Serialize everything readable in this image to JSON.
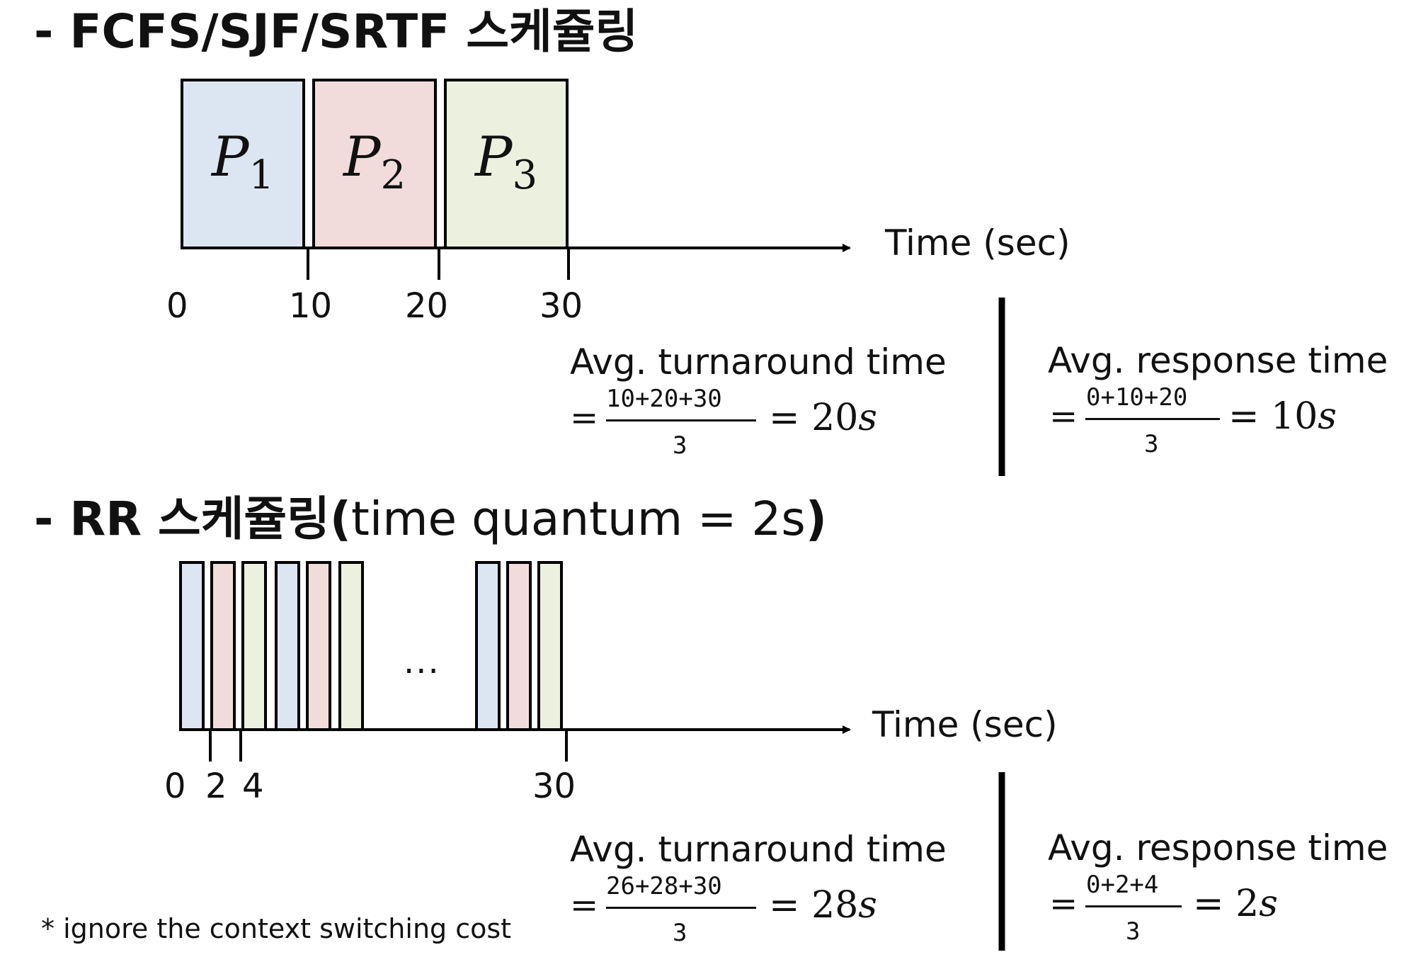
{
  "section1": {
    "heading": "- FCFS/SJF/SRTF 스케쥴링",
    "axis_label": "Time (sec)",
    "ticks": [
      "0",
      "10",
      "20",
      "30"
    ],
    "blocks": [
      {
        "base": "P",
        "sub": "1",
        "start": 0,
        "end": 10,
        "color": "#dce6f2"
      },
      {
        "base": "P",
        "sub": "2",
        "start": 10,
        "end": 20,
        "color": "#f2dcdb"
      },
      {
        "base": "P",
        "sub": "3",
        "start": 20,
        "end": 30,
        "color": "#ebf1de"
      }
    ],
    "turnaround": {
      "label": "Avg. turnaround time",
      "eq": "=",
      "numerator": "10+20+30",
      "denominator": "3",
      "result_eq": "=",
      "result_value": "20",
      "result_unit": "s"
    },
    "response": {
      "label": "Avg. response time",
      "eq": "=",
      "numerator": "0+10+20",
      "denominator": "3",
      "result_eq": "=",
      "result_value": "10",
      "result_unit": "s"
    }
  },
  "section2": {
    "heading_bold": "- RR 스케쥴링",
    "paren_open": "(",
    "heading_normal": "time quantum  =  2s",
    "paren_close": ")",
    "axis_label": "Time (sec)",
    "ticks": [
      "0",
      "2",
      "4",
      "30"
    ],
    "ellipsis": "...",
    "slices": [
      {
        "process": "P1",
        "start": 0,
        "end": 2,
        "color": "#dce6f2"
      },
      {
        "process": "P2",
        "start": 2,
        "end": 4,
        "color": "#f2dcdb"
      },
      {
        "process": "P3",
        "start": 4,
        "end": 6,
        "color": "#ebf1de"
      },
      {
        "process": "P1",
        "start": 6,
        "end": 8,
        "color": "#dce6f2"
      },
      {
        "process": "P2",
        "start": 8,
        "end": 10,
        "color": "#f2dcdb"
      },
      {
        "process": "P3",
        "start": 10,
        "end": 12,
        "color": "#ebf1de"
      },
      {
        "process": "P1",
        "start": 24,
        "end": 26,
        "color": "#dce6f2"
      },
      {
        "process": "P2",
        "start": 26,
        "end": 28,
        "color": "#f2dcdb"
      },
      {
        "process": "P3",
        "start": 28,
        "end": 30,
        "color": "#ebf1de"
      }
    ],
    "turnaround": {
      "label": "Avg. turnaround time",
      "eq": "=",
      "numerator": "26+28+30",
      "denominator": "3",
      "result_eq": "=",
      "result_value": "28",
      "result_unit": "s"
    },
    "response": {
      "label": "Avg. response time",
      "eq": "=",
      "numerator": "0+2+4",
      "denominator": "3",
      "result_eq": "=",
      "result_value": "2",
      "result_unit": "s"
    },
    "footnote": "* ignore the context switching cost"
  }
}
